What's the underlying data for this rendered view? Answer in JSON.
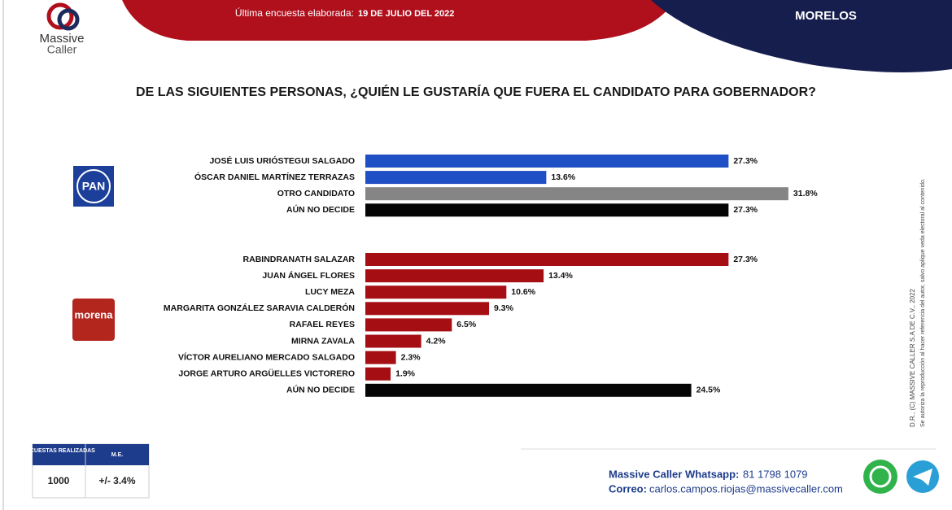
{
  "header": {
    "brand_1": "Massive",
    "brand_2": "Caller",
    "survey_label": "Última encuesta elaborada:",
    "survey_date": "19 DE JULIO DEL 2022",
    "state": "MORELOS"
  },
  "title": "DE LAS SIGUIENTES PERSONAS, ¿QUIÉN LE GUSTARÍA QUE FUERA EL CANDIDATO  PARA GOBERNADOR?",
  "chart_data": [
    {
      "type": "bar",
      "logo": "PAN",
      "categories": [
        "JOSÉ LUIS URIÓSTEGUI SALGADO",
        "ÓSCAR DANIEL MARTÍNEZ TERRAZAS",
        "OTRO CANDIDATO",
        "AÚN NO DECIDE"
      ],
      "values": [
        27.3,
        13.6,
        31.8,
        27.3
      ],
      "value_labels": [
        "27.3%",
        "13.6%",
        "31.8%",
        "27.3%"
      ],
      "colors": [
        "#1f4fc4",
        "#1f4fc4",
        "#858585",
        "#050505"
      ]
    },
    {
      "type": "bar",
      "logo": "morena",
      "categories": [
        "RABINDRANATH SALAZAR",
        "JUAN ÁNGEL FLORES",
        "LUCY MEZA",
        "MARGARITA GONZÁLEZ SARAVIA CALDERÓN",
        "RAFAEL REYES",
        "MIRNA ZAVALA",
        "VÍCTOR AURELIANO MERCADO SALGADO",
        "JORGE ARTURO ARGÜELLES VICTORERO",
        "AÚN NO DECIDE"
      ],
      "values": [
        27.3,
        13.4,
        10.6,
        9.3,
        6.5,
        4.2,
        2.3,
        1.9,
        24.5
      ],
      "value_labels": [
        "27.3%",
        "13.4%",
        "10.6%",
        "9.3%",
        "6.5%",
        "4.2%",
        "2.3%",
        "1.9%",
        "24.5%"
      ],
      "colors": [
        "#a50f14",
        "#a50f14",
        "#a50f14",
        "#a50f14",
        "#a50f14",
        "#a50f14",
        "#a50f14",
        "#a50f14",
        "#050505"
      ]
    }
  ],
  "table": {
    "headers": [
      "ENCUESTAS REALIZADAS",
      "M.E."
    ],
    "row": [
      1000,
      "+/- 3.4%"
    ]
  },
  "side_note": {
    "line_1": "D.R., (C) MASSIVE CALLER S.A DE C.V., 2022",
    "line_2": "Se autoriza la reproducción al hacer referencia del autor, salvo aplique veda electoral al contenido."
  },
  "footer": {
    "whatsapp_label": "Massive Caller Whatsapp:",
    "whatsapp": "81 1798 1079",
    "email_label": "Correo:",
    "email": "carlos.campos.riojas@massivecaller.com"
  }
}
